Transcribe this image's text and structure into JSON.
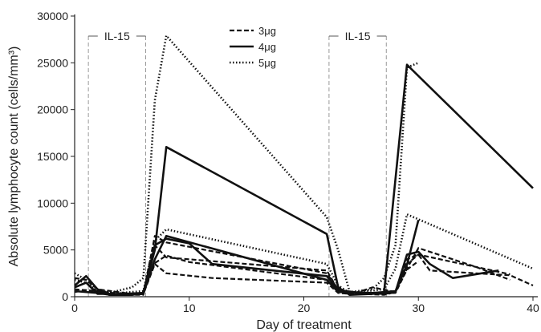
{
  "chart_data": {
    "type": "line",
    "xlabel": "Day of treatment",
    "ylabel": "Absolute lymphocyte count (cells/mm³)",
    "xlim": [
      0,
      40
    ],
    "ylim": [
      0,
      30000
    ],
    "x_ticks": [
      "0",
      "10",
      "20",
      "30",
      "40"
    ],
    "y_ticks": [
      "0",
      "5000",
      "10000",
      "15000",
      "20000",
      "25000",
      "30000"
    ],
    "grid": false,
    "legend_position": "top-center",
    "legend": [
      {
        "label": "3μg",
        "style": "dashed"
      },
      {
        "label": "4μg",
        "style": "solid"
      },
      {
        "label": "5μg",
        "style": "dotted"
      }
    ],
    "annotations": [
      {
        "label": "IL-15",
        "x_start": 1.2,
        "x_end": 6.2
      },
      {
        "label": "IL-15",
        "x_start": 22.2,
        "x_end": 27.2
      }
    ],
    "series": [
      {
        "style": "dashed",
        "x": [
          0,
          1,
          2,
          3,
          5,
          6,
          7,
          8,
          12,
          22,
          23,
          24,
          26,
          28,
          29,
          30,
          31,
          35,
          38,
          40
        ],
        "y": [
          500,
          700,
          400,
          200,
          200,
          300,
          3500,
          2500,
          2000,
          1500,
          400,
          300,
          400,
          500,
          4000,
          4500,
          2800,
          2500,
          2300,
          1200
        ]
      },
      {
        "style": "dashed",
        "x": [
          0,
          1,
          2,
          4,
          6,
          7,
          8,
          22,
          23,
          25,
          27,
          28,
          29,
          30,
          38
        ],
        "y": [
          1000,
          1500,
          500,
          200,
          200,
          5500,
          4200,
          2800,
          700,
          300,
          200,
          500,
          3500,
          4500,
          2400
        ]
      },
      {
        "style": "dashed",
        "x": [
          0,
          1,
          2,
          5,
          6,
          7,
          8,
          22,
          23,
          24,
          26,
          28,
          29,
          30,
          35,
          38
        ],
        "y": [
          2000,
          1800,
          800,
          300,
          300,
          6500,
          5800,
          2500,
          800,
          200,
          1000,
          500,
          3000,
          5200,
          3200,
          1800
        ]
      },
      {
        "style": "dashed",
        "x": [
          0,
          2,
          4,
          6,
          7,
          8,
          10,
          22,
          24,
          28,
          29,
          30
        ],
        "y": [
          800,
          600,
          300,
          400,
          3600,
          4400,
          3700,
          1800,
          300,
          400,
          2900,
          3800
        ]
      },
      {
        "style": "solid",
        "x": [
          0,
          1,
          2,
          3,
          5,
          6,
          7,
          8,
          22,
          23,
          24,
          26,
          27,
          29,
          40
        ],
        "y": [
          1200,
          2200,
          800,
          200,
          200,
          400,
          5000,
          16000,
          6700,
          1000,
          200,
          300,
          400,
          24800,
          11600
        ]
      },
      {
        "style": "solid",
        "x": [
          0,
          1,
          2,
          4,
          6,
          7,
          8,
          10,
          12,
          22,
          23,
          25,
          27,
          28,
          29,
          30,
          31,
          33,
          36,
          37
        ],
        "y": [
          1000,
          1500,
          300,
          300,
          400,
          5500,
          6200,
          5700,
          3500,
          2200,
          700,
          400,
          300,
          500,
          4500,
          4800,
          3500,
          2000,
          2600,
          2800
        ]
      },
      {
        "style": "solid",
        "x": [
          0,
          2,
          4,
          6,
          7,
          8,
          22,
          23,
          26,
          28,
          29,
          30
        ],
        "y": [
          600,
          400,
          200,
          300,
          4000,
          6500,
          1800,
          500,
          400,
          600,
          3400,
          8200
        ]
      },
      {
        "style": "dotted",
        "x": [
          0,
          1,
          2,
          3,
          5,
          6,
          7,
          8,
          22,
          23,
          24,
          26,
          27,
          28,
          29,
          30
        ],
        "y": [
          2500,
          1800,
          800,
          400,
          1000,
          2000,
          21000,
          27900,
          8500,
          5000,
          500,
          800,
          2000,
          5500,
          24500,
          25000
        ]
      },
      {
        "style": "dotted",
        "x": [
          0,
          1,
          2,
          4,
          6,
          7,
          8,
          22,
          23,
          24,
          27,
          28,
          29,
          40
        ],
        "y": [
          1800,
          1500,
          600,
          400,
          600,
          6000,
          7200,
          3500,
          1200,
          400,
          800,
          3000,
          8800,
          3000
        ]
      }
    ]
  }
}
